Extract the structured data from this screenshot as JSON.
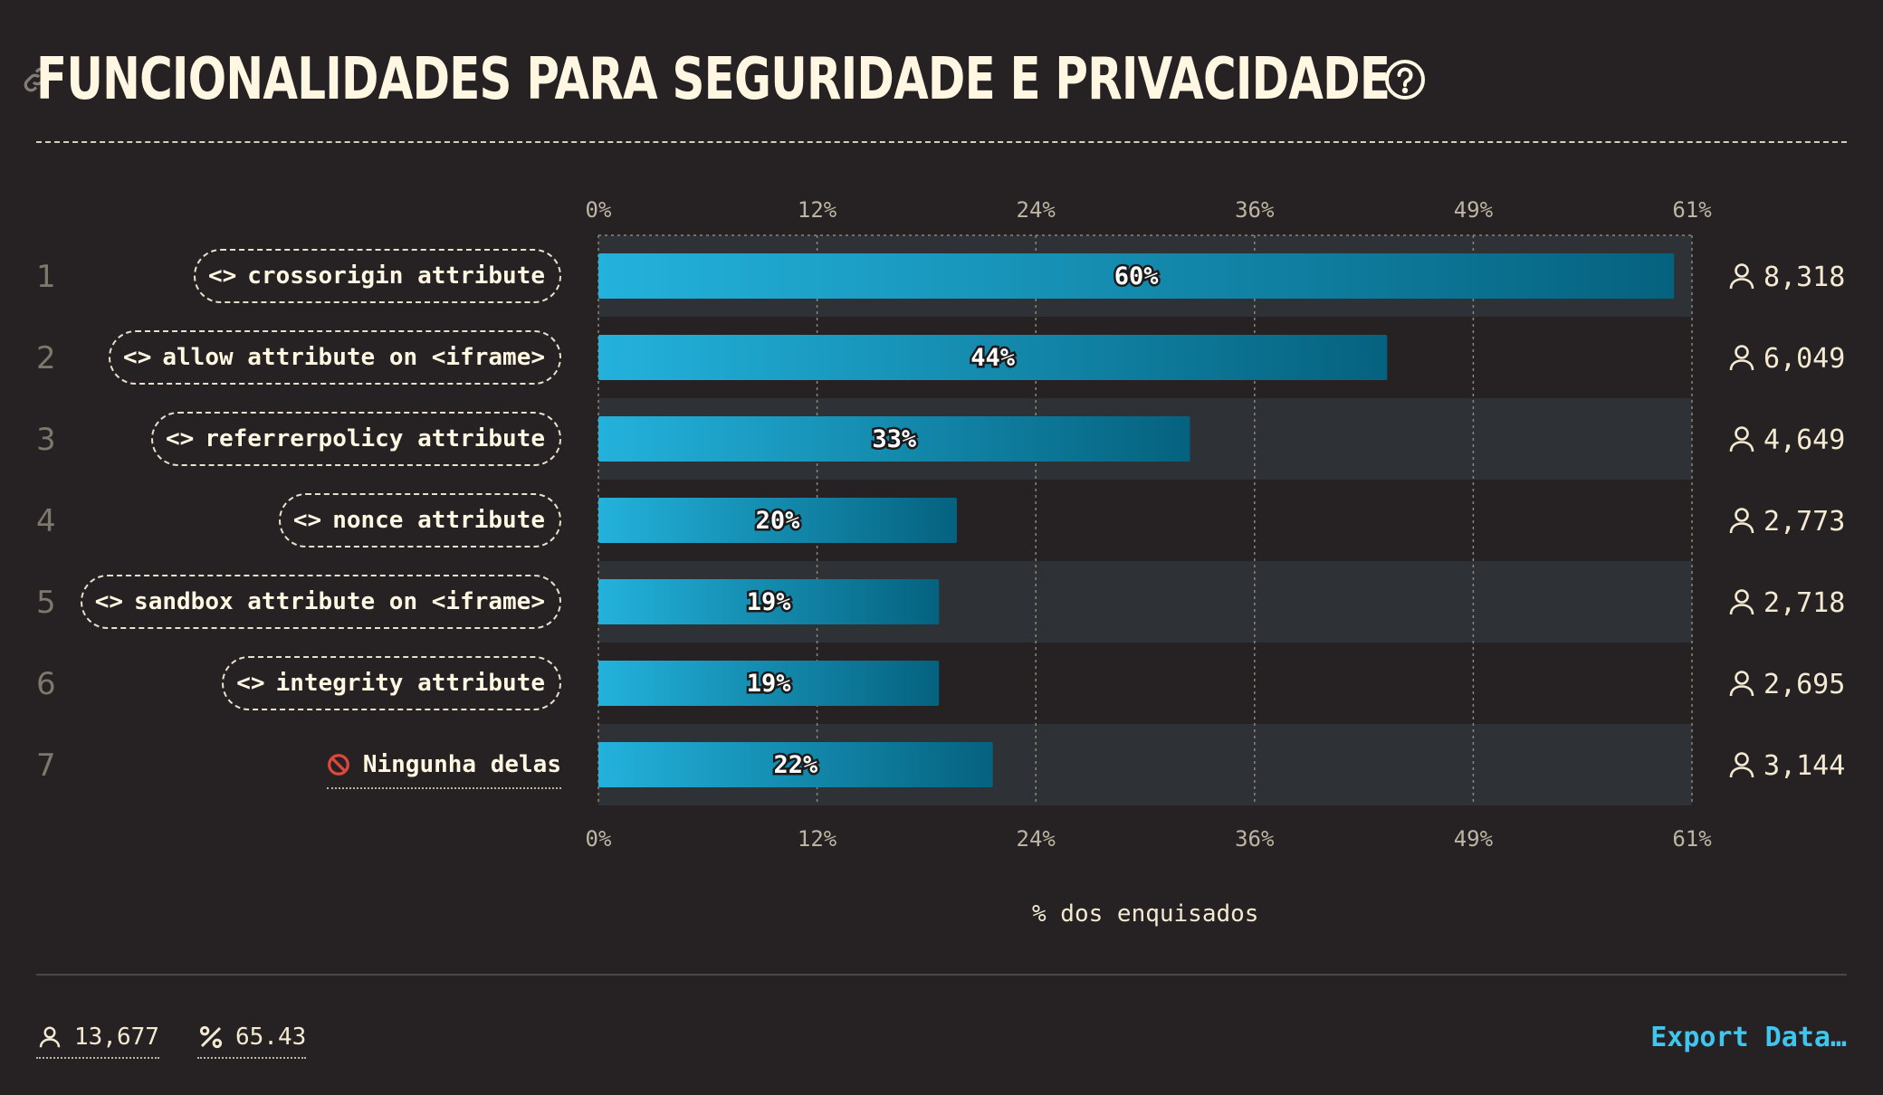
{
  "header": {
    "title": "FUNCIONALIDADES PARA SEGURIDADE E PRIVACIDADE"
  },
  "icons": {
    "link": "link-icon",
    "help": "question-circle-icon",
    "code": "code-brackets-icon",
    "ban": "no-entry-icon",
    "user": "user-icon",
    "percent": "percent-icon"
  },
  "colors": {
    "background": "#262223",
    "bar_start": "#23b2dc",
    "bar_end": "#05627f",
    "row_band": "#2e3236",
    "accent_link": "#3fc6ee",
    "ban_red": "#e0463c"
  },
  "chart_data": {
    "type": "bar",
    "orientation": "horizontal",
    "xlabel": "% dos enquisados",
    "xlim": [
      0,
      61
    ],
    "x_ticks": [
      "0%",
      "12%",
      "24%",
      "36%",
      "49%",
      "61%"
    ],
    "x_tick_values": [
      0,
      12.2,
      24.4,
      36.6,
      48.8,
      61
    ],
    "grid": true,
    "categories": [
      {
        "rank": "1",
        "label": "crossorigin attribute",
        "kind": "code",
        "value": 60,
        "value_label": "60%",
        "count": "8,318"
      },
      {
        "rank": "2",
        "label": "allow attribute on <iframe>",
        "kind": "code",
        "value": 44,
        "value_label": "44%",
        "count": "6,049"
      },
      {
        "rank": "3",
        "label": "referrerpolicy attribute",
        "kind": "code",
        "value": 33,
        "value_label": "33%",
        "count": "4,649"
      },
      {
        "rank": "4",
        "label": "nonce attribute",
        "kind": "code",
        "value": 20,
        "value_label": "20%",
        "count": "2,773"
      },
      {
        "rank": "5",
        "label": "sandbox attribute on <iframe>",
        "kind": "code",
        "value": 19,
        "value_label": "19%",
        "count": "2,718"
      },
      {
        "rank": "6",
        "label": "integrity attribute",
        "kind": "code",
        "value": 19,
        "value_label": "19%",
        "count": "2,695"
      },
      {
        "rank": "7",
        "label": "Ningunha delas",
        "kind": "none",
        "value": 22,
        "value_label": "22%",
        "count": "3,144"
      }
    ]
  },
  "footer": {
    "respondents": "13,677",
    "percent": "65.43",
    "export_label": "Export Data…"
  }
}
